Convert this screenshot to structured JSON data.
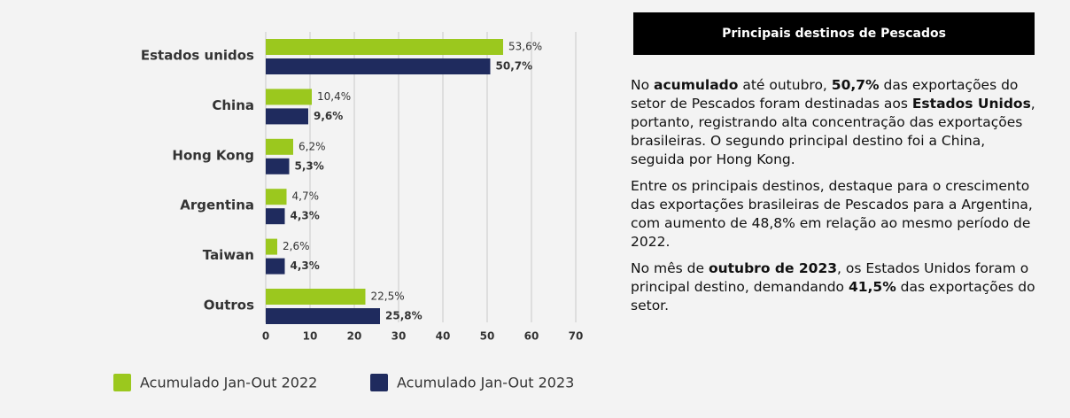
{
  "chart_data": {
    "type": "barh",
    "categories": [
      "Estados unidos",
      "China",
      "Hong Kong",
      "Argentina",
      "Taiwan",
      "Outros"
    ],
    "series": [
      {
        "name": "Acumulado Jan-Out 2022",
        "color": "#9bc81e",
        "values": [
          53.6,
          10.4,
          6.2,
          4.7,
          2.6,
          22.5
        ],
        "value_labels": [
          "53,6%",
          "10,4%",
          "6,2%",
          "4,7%",
          "2,6%",
          "22,5%"
        ],
        "bold": false
      },
      {
        "name": "Acumulado Jan-Out 2023",
        "color": "#1f2b5e",
        "values": [
          50.7,
          9.6,
          5.3,
          4.3,
          4.3,
          25.8
        ],
        "value_labels": [
          "50,7%",
          "9,6%",
          "5,3%",
          "4,3%",
          "4,3%",
          "25,8%"
        ],
        "bold": true
      }
    ],
    "xlim": [
      0,
      70
    ],
    "xticks": [
      0,
      10,
      20,
      30,
      40,
      50,
      60,
      70
    ],
    "grid": true
  },
  "panel": {
    "title": "Principais destinos de Pescados",
    "paragraphs": [
      [
        {
          "text": "No ",
          "bold": false
        },
        {
          "text": "acumulado",
          "bold": true
        },
        {
          "text": " até outubro, ",
          "bold": false
        },
        {
          "text": "50,7%",
          "bold": true
        },
        {
          "text": " das exportações do setor de Pescados foram destinadas aos ",
          "bold": false
        },
        {
          "text": "Estados Unidos",
          "bold": true
        },
        {
          "text": ", portanto, registrando alta concentração das exportações brasileiras. O segundo principal destino foi a China, seguida por Hong Kong.",
          "bold": false
        }
      ],
      [
        {
          "text": "Entre os principais destinos, destaque para o crescimento das exportações brasileiras de Pescados para a Argentina, com aumento de 48,8% em relação ao mesmo período de 2022.",
          "bold": false
        }
      ],
      [
        {
          "text": "No mês de ",
          "bold": false
        },
        {
          "text": "outubro de 2023",
          "bold": true
        },
        {
          "text": ", os Estados Unidos foram o principal destino, demandando ",
          "bold": false
        },
        {
          "text": "41,5%",
          "bold": true
        },
        {
          "text": " das exportações do setor.",
          "bold": false
        }
      ]
    ]
  }
}
